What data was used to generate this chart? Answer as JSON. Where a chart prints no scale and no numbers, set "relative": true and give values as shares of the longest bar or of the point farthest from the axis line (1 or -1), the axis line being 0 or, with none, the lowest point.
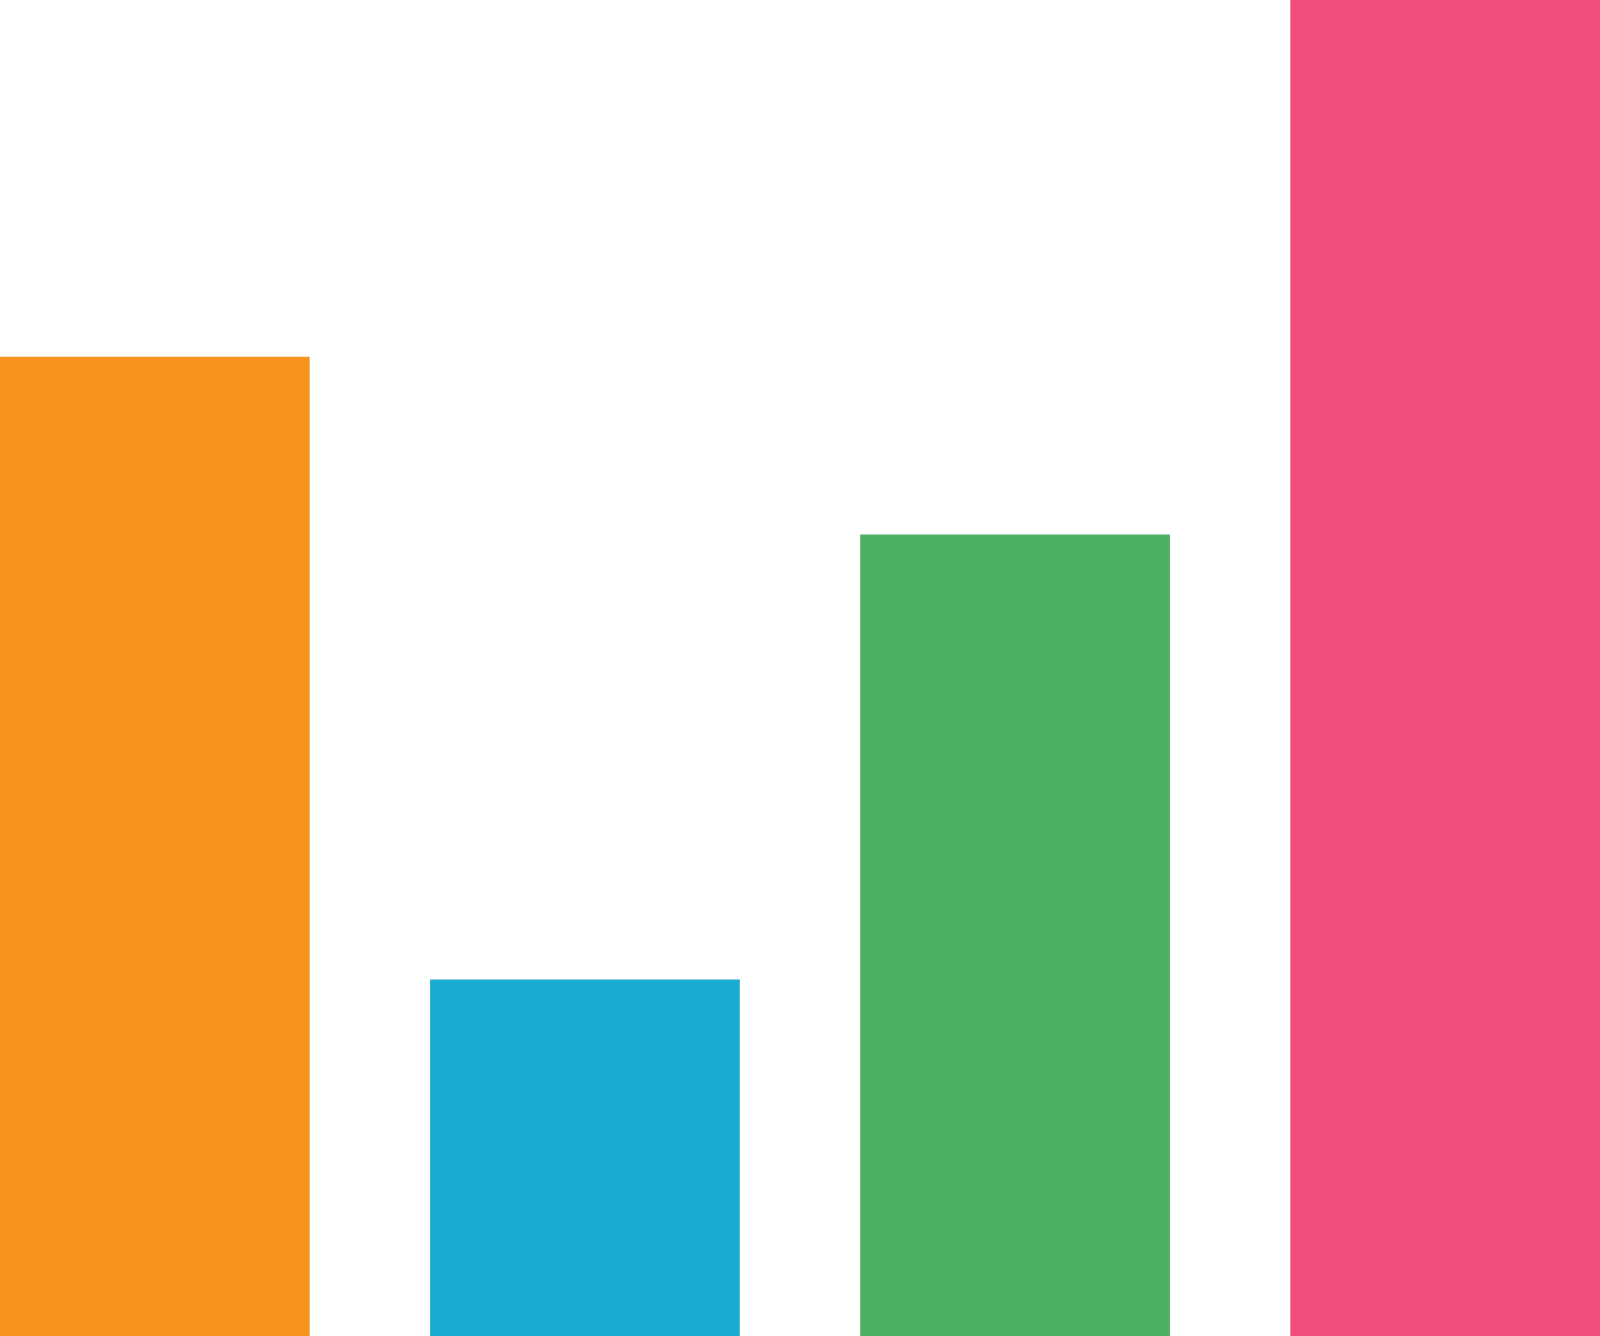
{
  "chart_data": {
    "type": "bar",
    "relative": true,
    "categories": [
      null,
      null,
      null,
      null
    ],
    "values": [
      0.733,
      0.267,
      0.6,
      1
    ],
    "colors": [
      "#f7941d",
      "#1aabd1",
      "#4caf64",
      "#f04e7c"
    ]
  }
}
